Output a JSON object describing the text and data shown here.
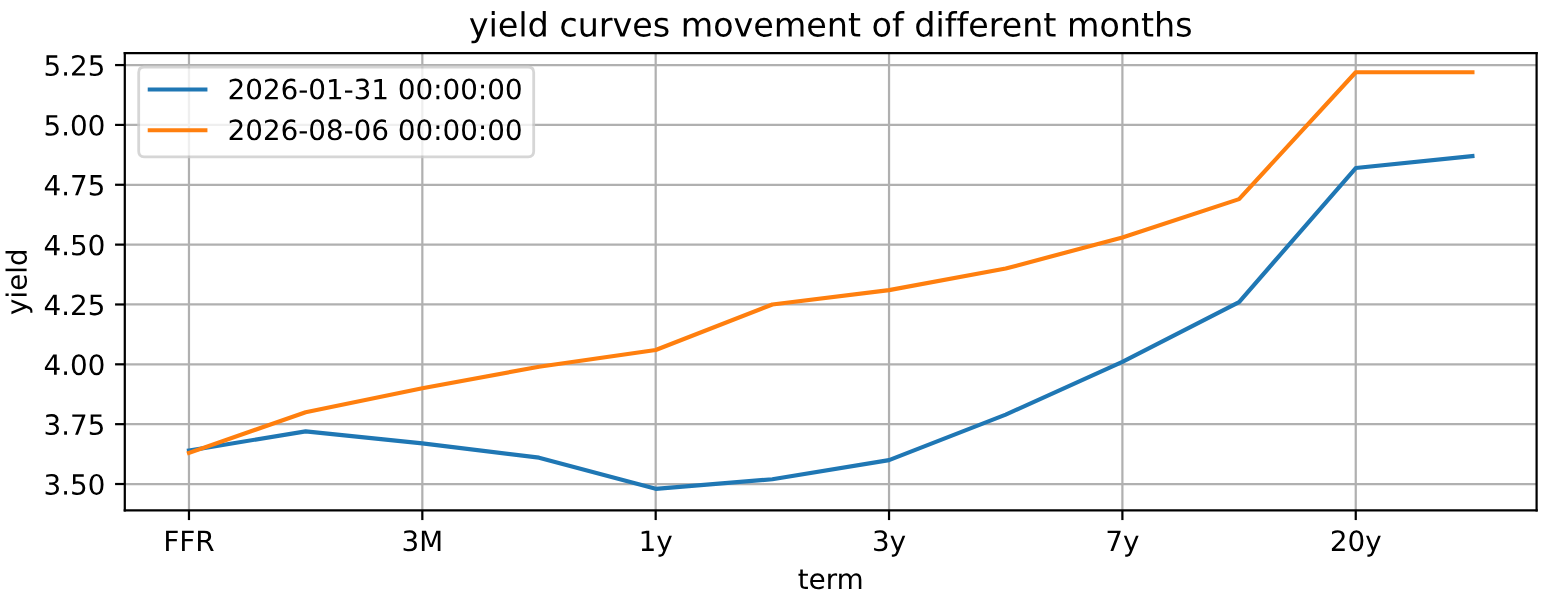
{
  "chart_data": {
    "type": "line",
    "title": "yield curves movement of different months",
    "xlabel": "term",
    "ylabel": "yield",
    "categories": [
      "FFR",
      null,
      "3M",
      null,
      "1y",
      null,
      "3y",
      null,
      "7y",
      null,
      "20y",
      null
    ],
    "series": [
      {
        "name": "2026-01-31 00:00:00",
        "color": "#1f77b4",
        "values": [
          3.64,
          3.72,
          3.67,
          3.61,
          3.48,
          3.52,
          3.6,
          3.79,
          4.01,
          4.26,
          4.82,
          4.87
        ]
      },
      {
        "name": "2026-08-06 00:00:00",
        "color": "#ff7f0e",
        "values": [
          3.63,
          3.8,
          3.9,
          3.99,
          4.06,
          4.25,
          4.31,
          4.4,
          4.53,
          4.69,
          5.22,
          5.22
        ]
      }
    ],
    "ylim": [
      3.39,
      5.3
    ],
    "yticks": [
      {
        "value": 3.5,
        "label": "3.50"
      },
      {
        "value": 3.75,
        "label": "3.75"
      },
      {
        "value": 4.0,
        "label": "4.00"
      },
      {
        "value": 4.25,
        "label": "4.25"
      },
      {
        "value": 4.5,
        "label": "4.50"
      },
      {
        "value": 4.75,
        "label": "4.75"
      },
      {
        "value": 5.0,
        "label": "5.00"
      },
      {
        "value": 5.25,
        "label": "5.25"
      }
    ],
    "grid": true,
    "legend": "top left",
    "marker": "none",
    "line_style": "solid"
  }
}
